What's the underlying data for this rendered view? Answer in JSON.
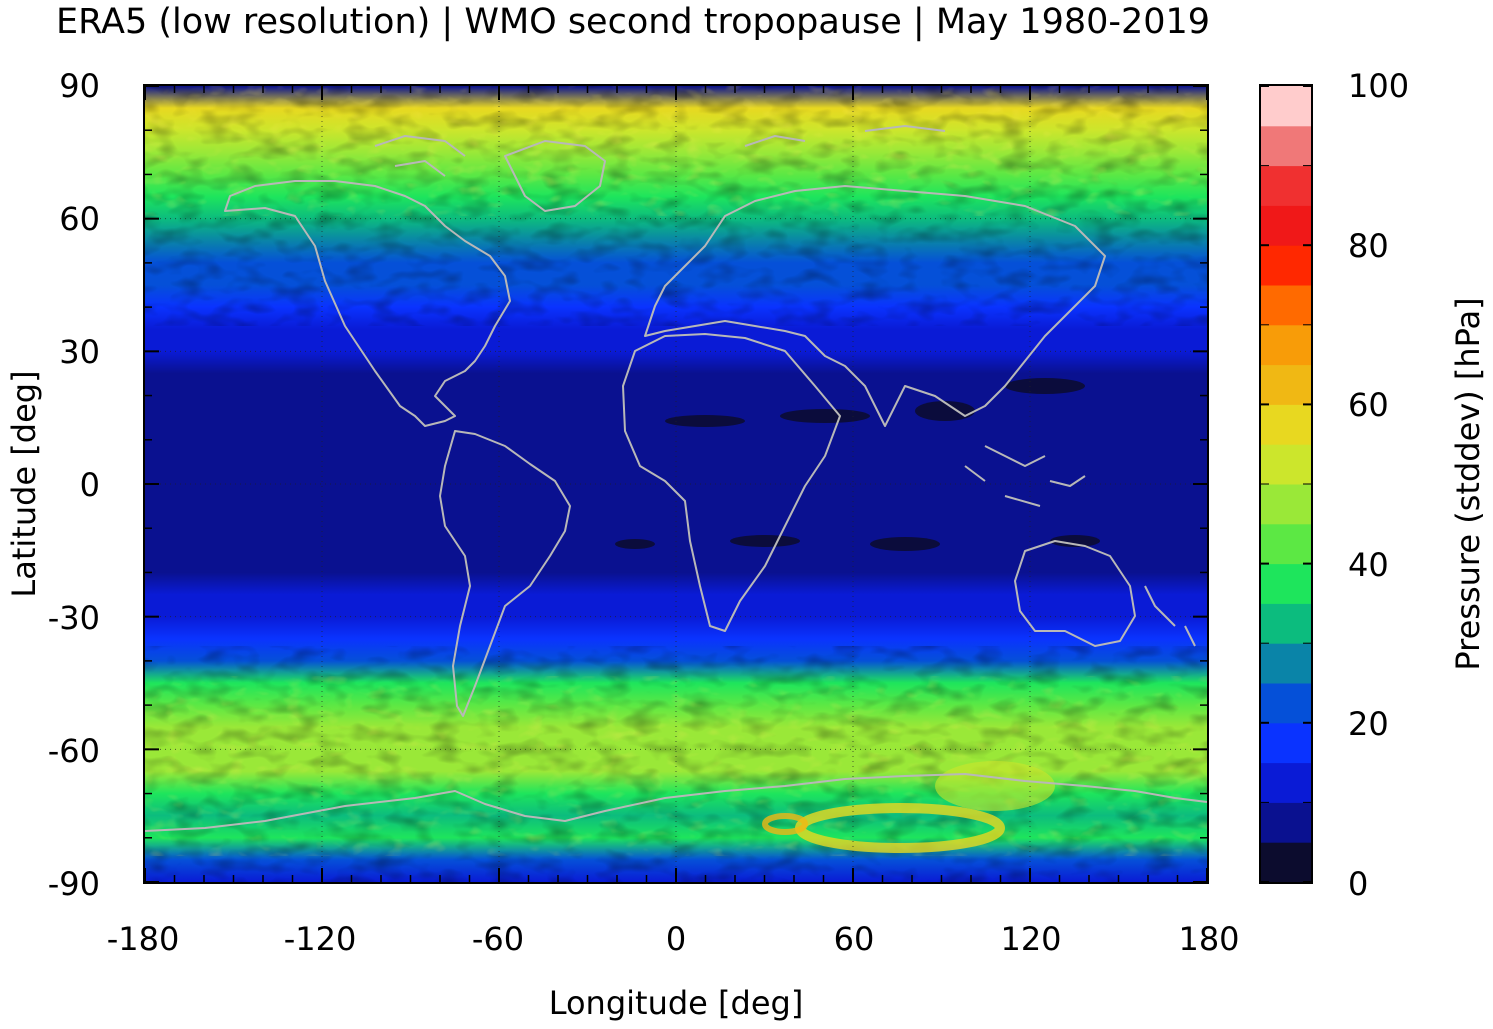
{
  "title": "ERA5 (low resolution) | WMO second tropopause | May 1980-2019",
  "x_axis": {
    "label": "Longitude [deg]",
    "ticks": [
      "-180",
      "-120",
      "-60",
      "0",
      "60",
      "120",
      "180"
    ]
  },
  "y_axis": {
    "label": "Latitude [deg]",
    "ticks": [
      "90",
      "60",
      "30",
      "0",
      "-30",
      "-60",
      "-90"
    ]
  },
  "colorbar": {
    "label": "Pressure (stddev) [hPa]",
    "ticks": [
      "100",
      "80",
      "60",
      "40",
      "20",
      "0"
    ],
    "range": [
      0,
      100
    ],
    "colors": [
      "#0c0c2e",
      "#0a1190",
      "#0a1bd6",
      "#0a33ff",
      "#0550d8",
      "#0a84a8",
      "#0cbc7e",
      "#1ee55c",
      "#5ce844",
      "#9ae838",
      "#cce62c",
      "#e8d820",
      "#f0b814",
      "#f89c08",
      "#ff6a00",
      "#ff2800",
      "#f01818",
      "#f03030",
      "#f07878",
      "#ffcccc"
    ]
  },
  "chart_data": {
    "type": "heatmap",
    "title": "ERA5 (low resolution) | WMO second tropopause | May 1980-2019",
    "xlabel": "Longitude [deg]",
    "ylabel": "Latitude [deg]",
    "xlim": [
      -180,
      180
    ],
    "ylim": [
      -90,
      90
    ],
    "zlabel": "Pressure (stddev) [hPa]",
    "zlim": [
      0,
      100
    ],
    "grid": true,
    "overlay": "coastlines",
    "zonal_mean_profile": {
      "lat": [
        90,
        85,
        80,
        75,
        70,
        65,
        60,
        55,
        50,
        45,
        40,
        35,
        30,
        25,
        20,
        15,
        10,
        5,
        0,
        -5,
        -10,
        -15,
        -20,
        -25,
        -30,
        -35,
        -40,
        -45,
        -50,
        -55,
        -60,
        -65,
        -70,
        -75,
        -80,
        -85,
        -90
      ],
      "stddev_hPa": [
        6,
        55,
        52,
        46,
        40,
        35,
        33,
        28,
        24,
        20,
        15,
        13,
        11,
        8,
        7,
        6,
        6,
        6,
        6,
        6,
        7,
        7,
        8,
        10,
        13,
        15,
        22,
        35,
        42,
        46,
        48,
        45,
        38,
        30,
        36,
        22,
        14
      ]
    }
  }
}
